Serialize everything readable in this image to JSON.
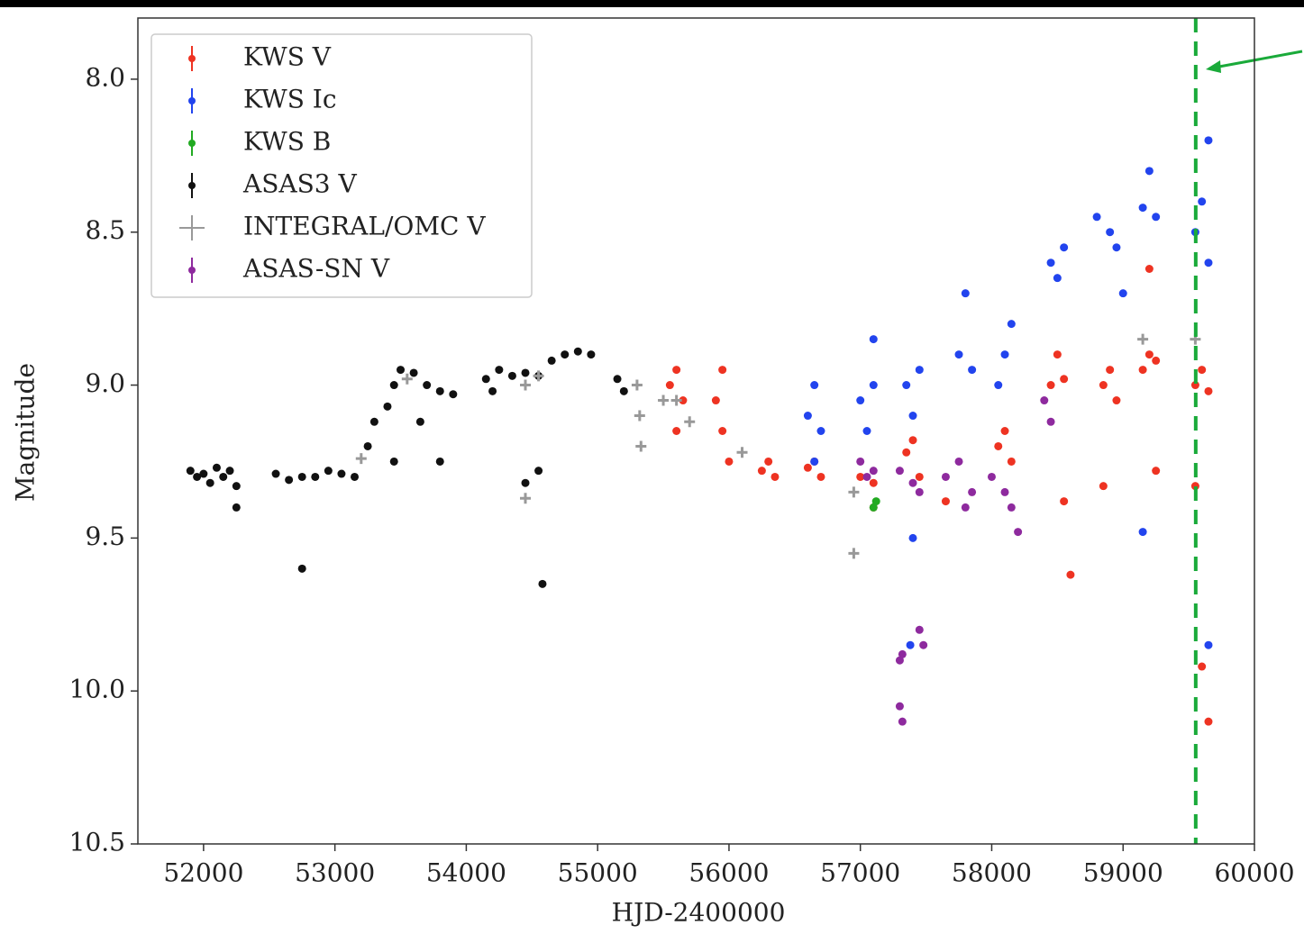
{
  "chart_data": {
    "type": "scatter",
    "xlabel": "HJD-2400000",
    "ylabel": "Magnitude",
    "xlim": [
      51500,
      60000
    ],
    "ylim": [
      7.8,
      10.5
    ],
    "y_inverted": true,
    "xticks": [
      52000,
      53000,
      54000,
      55000,
      56000,
      57000,
      58000,
      59000,
      60000
    ],
    "yticks": [
      {
        "value": 8,
        "label": "8.0"
      },
      {
        "value": 8.5,
        "label": "8.5"
      },
      {
        "value": 9,
        "label": "9.0"
      },
      {
        "value": 9.5,
        "label": "9.5"
      },
      {
        "value": 10,
        "label": "10.0"
      },
      {
        "value": 10.5,
        "label": "10.5"
      }
    ],
    "legend": "upper left",
    "vline": {
      "x": 59553,
      "color": "#1aaa3a"
    },
    "series": [
      {
        "name": "KWS V",
        "color": "#ee3322",
        "x": [
          55550,
          55600,
          55650,
          55600,
          55900,
          55950,
          55950,
          56000,
          56250,
          56300,
          56350,
          56600,
          56650,
          56700,
          57000,
          57100,
          57100,
          57350,
          57450,
          57400,
          57650,
          58050,
          58100,
          58150,
          58450,
          58550,
          58550,
          58600,
          58500,
          58850,
          58900,
          58950,
          58850,
          59150,
          59200,
          59250,
          59200,
          59250,
          59550,
          59600,
          59650,
          59550,
          59600,
          59650
        ],
        "values": [
          9.0,
          8.95,
          9.05,
          9.15,
          9.05,
          9.15,
          8.95,
          9.25,
          9.28,
          9.25,
          9.3,
          9.27,
          9.25,
          9.3,
          9.3,
          9.32,
          9.4,
          9.22,
          9.3,
          9.18,
          9.38,
          9.2,
          9.15,
          9.25,
          9.0,
          8.98,
          9.38,
          9.62,
          8.9,
          9.0,
          8.95,
          9.05,
          9.33,
          8.95,
          8.9,
          8.92,
          8.62,
          9.28,
          9.0,
          8.95,
          9.02,
          9.33,
          9.92,
          10.1
        ]
      },
      {
        "name": "KWS Ic",
        "color": "#2244ee",
        "x": [
          56600,
          56650,
          56700,
          56650,
          57000,
          57100,
          57050,
          57100,
          57350,
          57450,
          57400,
          57400,
          57380,
          57750,
          57850,
          57800,
          58100,
          58150,
          58050,
          58450,
          58550,
          58500,
          58800,
          58900,
          58950,
          59000,
          59150,
          59250,
          59200,
          59150,
          59550,
          59600,
          59650,
          59650,
          59650
        ],
        "values": [
          9.1,
          9.0,
          9.15,
          9.25,
          9.05,
          9.0,
          9.15,
          8.85,
          9.0,
          8.95,
          9.1,
          9.5,
          9.85,
          8.9,
          8.95,
          8.7,
          8.9,
          8.8,
          9.0,
          8.6,
          8.55,
          8.65,
          8.45,
          8.5,
          8.55,
          8.7,
          8.42,
          8.45,
          8.3,
          9.48,
          8.5,
          8.4,
          8.6,
          8.2,
          9.85
        ]
      },
      {
        "name": "KWS B",
        "color": "#22aa22",
        "x": [
          57100,
          57120
        ],
        "values": [
          9.4,
          9.38
        ]
      },
      {
        "name": "ASAS3 V",
        "color": "#111111",
        "x": [
          51900,
          51950,
          52000,
          52050,
          52100,
          52150,
          52200,
          52250,
          52250,
          52550,
          52650,
          52750,
          52850,
          52950,
          53050,
          53150,
          52750,
          53250,
          53300,
          53400,
          53450,
          53500,
          53600,
          53700,
          53800,
          53900,
          53450,
          53650,
          53800,
          54150,
          54250,
          54350,
          54450,
          54550,
          54450,
          54550,
          54580,
          54200,
          54650,
          54750,
          54850,
          54950,
          55150,
          55200
        ],
        "values": [
          9.28,
          9.3,
          9.29,
          9.32,
          9.27,
          9.3,
          9.28,
          9.33,
          9.4,
          9.29,
          9.31,
          9.3,
          9.3,
          9.28,
          9.29,
          9.3,
          9.6,
          9.2,
          9.12,
          9.07,
          9.0,
          8.95,
          8.96,
          9.0,
          9.02,
          9.03,
          9.25,
          9.12,
          9.25,
          8.98,
          8.95,
          8.97,
          8.96,
          8.97,
          9.32,
          9.28,
          9.65,
          9.02,
          8.92,
          8.9,
          8.89,
          8.9,
          8.98,
          9.02
        ]
      },
      {
        "name": "INTEGRAL/OMC V",
        "color": "#999999",
        "x": [
          53200,
          53550,
          54450,
          54450,
          54550,
          55300,
          55320,
          55330,
          55500,
          55600,
          55700,
          56100,
          56950,
          56950,
          59150,
          59550
        ],
        "values": [
          9.24,
          8.98,
          9.0,
          9.37,
          8.97,
          9.0,
          9.1,
          9.2,
          9.05,
          9.05,
          9.12,
          9.22,
          9.35,
          9.55,
          8.85,
          8.85
        ]
      },
      {
        "name": "ASAS-SN V",
        "color": "#8e2a9e",
        "x": [
          57000,
          57050,
          57100,
          57300,
          57400,
          57450,
          57300,
          57320,
          57450,
          57480,
          57300,
          57320,
          57650,
          57750,
          57850,
          57800,
          58000,
          58100,
          58150,
          58200,
          58400,
          58450
        ],
        "values": [
          9.25,
          9.3,
          9.28,
          9.28,
          9.32,
          9.35,
          9.9,
          9.88,
          9.8,
          9.85,
          10.05,
          10.1,
          9.3,
          9.25,
          9.35,
          9.4,
          9.3,
          9.35,
          9.4,
          9.48,
          9.05,
          9.12
        ]
      }
    ]
  }
}
